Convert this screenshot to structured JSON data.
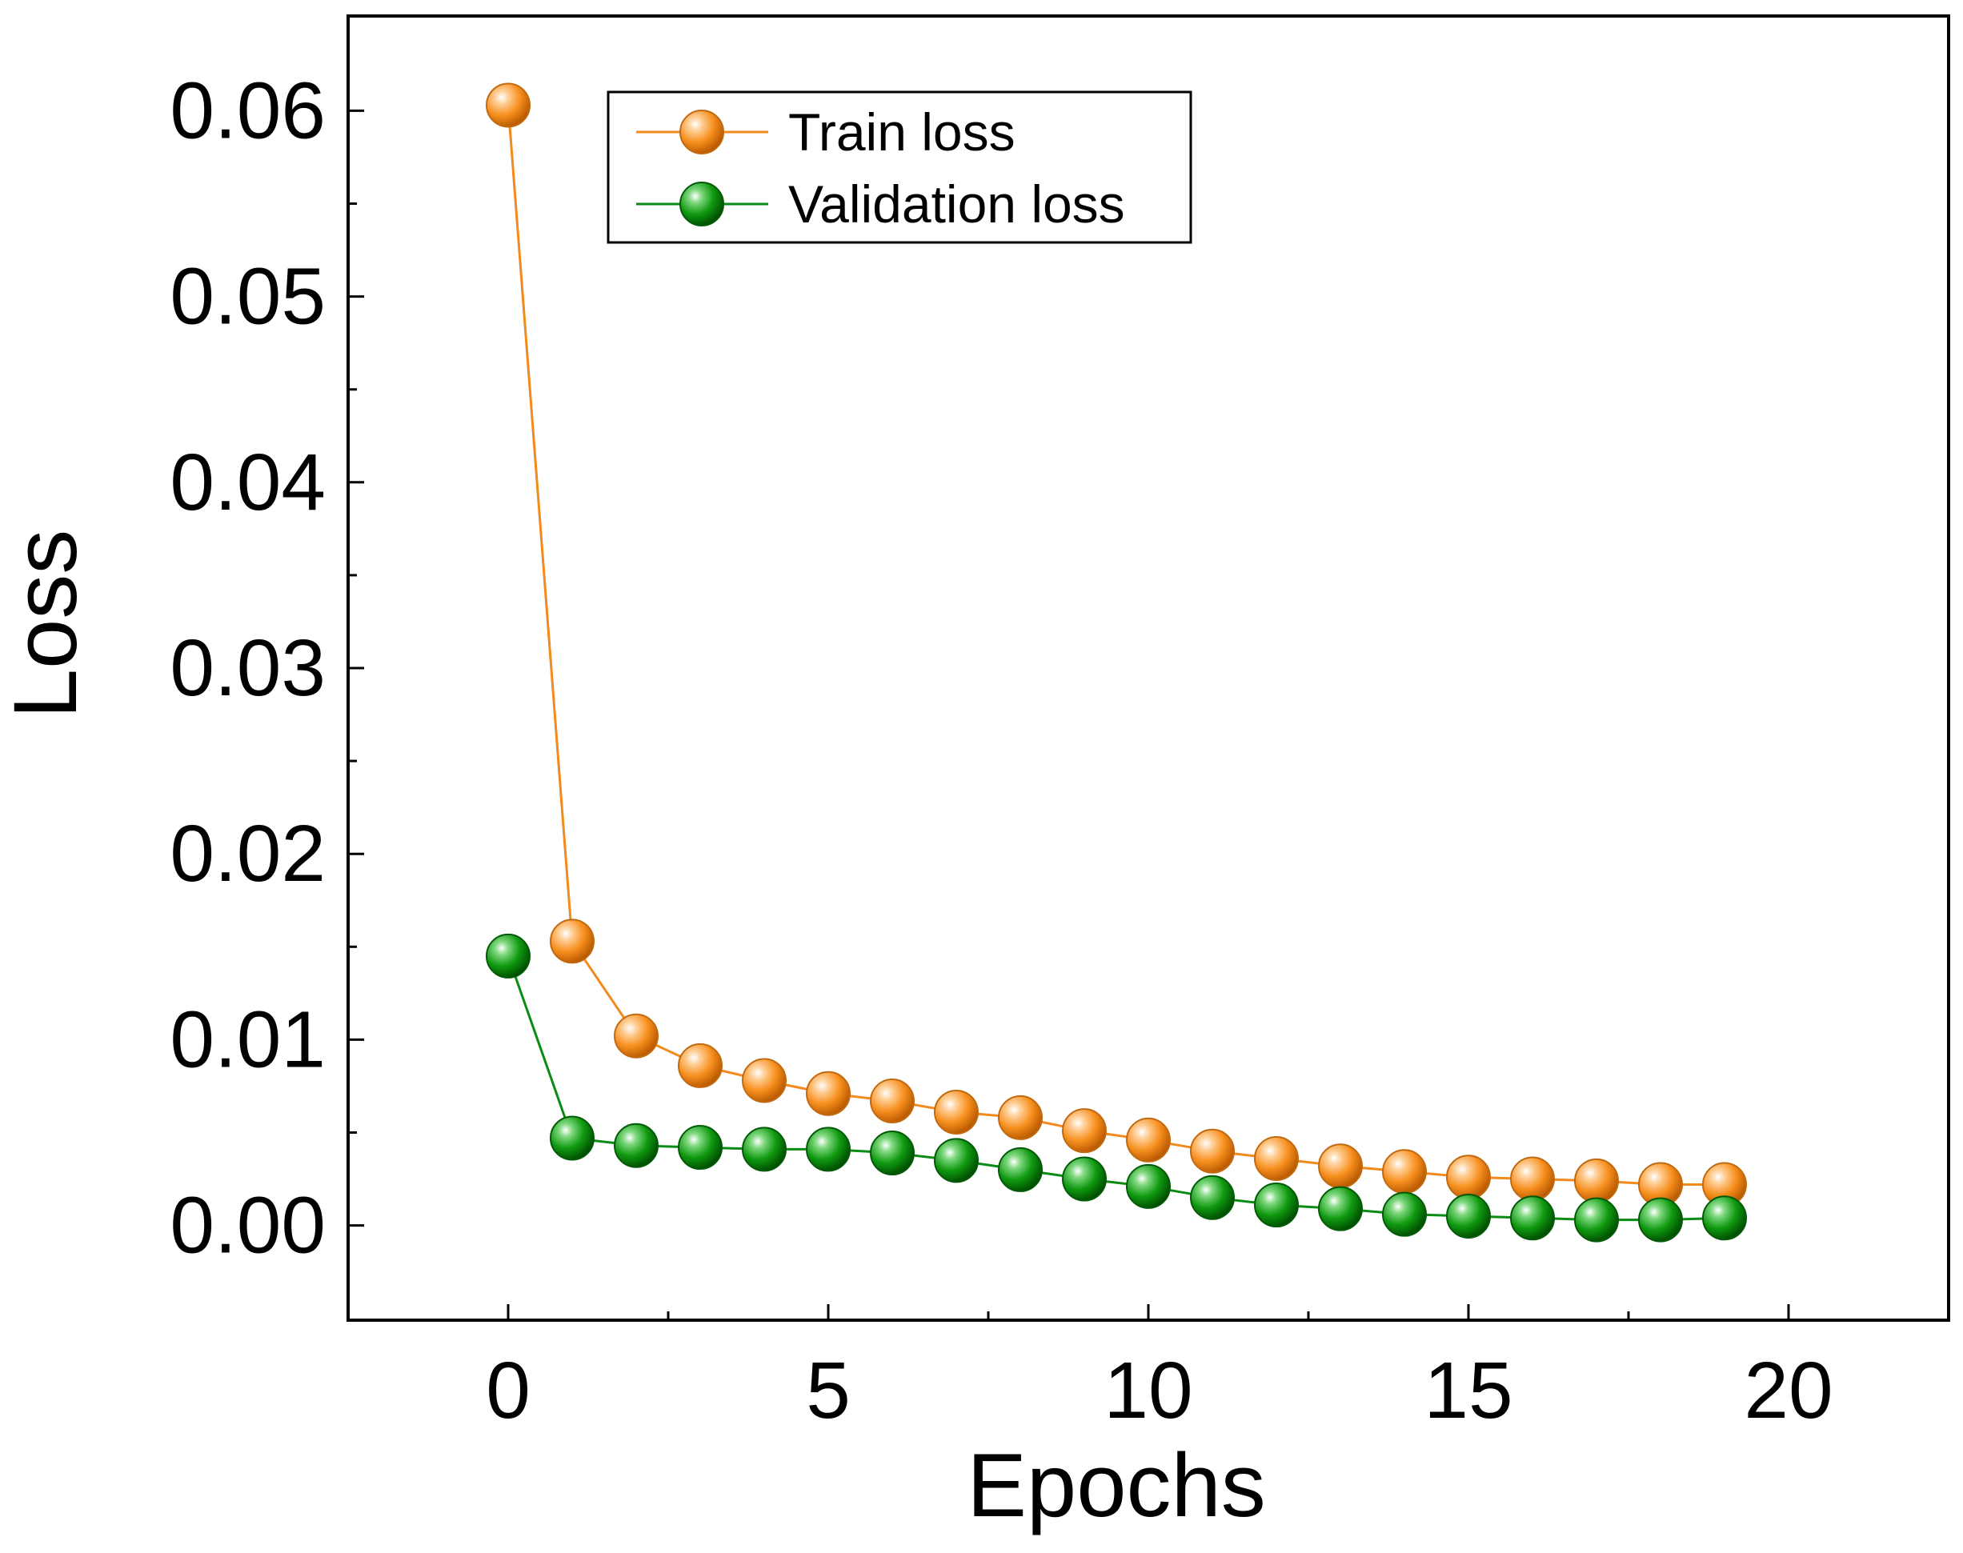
{
  "chart_data": {
    "type": "line",
    "title": "",
    "xlabel": "Epochs",
    "ylabel": "Loss",
    "xlim": [
      -2.5,
      22.5
    ],
    "ylim": [
      -0.0051,
      0.0651
    ],
    "x_ticks": [
      0,
      5,
      10,
      15,
      20
    ],
    "x_tick_labels": [
      "0",
      "5",
      "10",
      "15",
      "20"
    ],
    "y_ticks": [
      0.0,
      0.01,
      0.02,
      0.03,
      0.04,
      0.05,
      0.06
    ],
    "y_tick_labels": [
      "0.00",
      "0.01",
      "0.02",
      "0.03",
      "0.04",
      "0.05",
      "0.06"
    ],
    "grid": false,
    "legend_position": "top-left",
    "x": [
      0,
      1,
      2,
      3,
      4,
      5,
      6,
      7,
      8,
      9,
      10,
      11,
      12,
      13,
      14,
      15,
      16,
      17,
      18,
      19
    ],
    "series": [
      {
        "name": "Train loss",
        "color": "#f28a1e",
        "values": [
          0.0603,
          0.0153,
          0.0102,
          0.0086,
          0.0078,
          0.0071,
          0.0067,
          0.0061,
          0.0058,
          0.0051,
          0.0046,
          0.004,
          0.0036,
          0.0032,
          0.0029,
          0.0026,
          0.0025,
          0.0024,
          0.0022,
          0.0022
        ]
      },
      {
        "name": "Validation loss",
        "color": "#0a8c14",
        "values": [
          0.0145,
          0.0047,
          0.0043,
          0.0042,
          0.0041,
          0.0041,
          0.0039,
          0.0035,
          0.003,
          0.0025,
          0.0021,
          0.0015,
          0.0011,
          0.0009,
          0.0006,
          0.0005,
          0.0004,
          0.0003,
          0.0003,
          0.0004
        ]
      }
    ]
  }
}
